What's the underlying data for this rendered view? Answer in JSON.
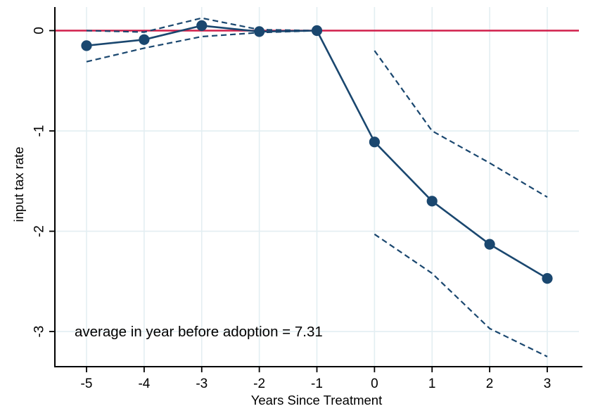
{
  "window": {
    "background": "#ffffff"
  },
  "chart_data": {
    "type": "line",
    "title": "",
    "xlabel": "Years Since Treatment",
    "ylabel": "input tax rate",
    "annotation": "average in year before adoption = 7.31",
    "grid": true,
    "legend": "none",
    "x_tick_labels": [
      "-5",
      "-4",
      "-3",
      "-2",
      "-1",
      "0",
      "1",
      "2",
      "3"
    ],
    "x_tick_values": [
      -5,
      -4,
      -3,
      -2,
      -1,
      0,
      1,
      2,
      3
    ],
    "y_tick_labels": [
      "0",
      "-1",
      "-2",
      "-3"
    ],
    "y_tick_values": [
      0,
      -1,
      -2,
      -3
    ],
    "xlim": [
      -5.55,
      3.55
    ],
    "ylim": [
      -3.35,
      0.235
    ],
    "zero_line": {
      "value": 0,
      "color": "#d01e4a"
    },
    "colors": {
      "series": "#1a476f",
      "zero_line": "#d01e4a",
      "grid": "#e3eef2",
      "axis": "#000000"
    },
    "series": [
      {
        "name": "point-estimate",
        "style": "solid-markers",
        "x": [
          -5,
          -4,
          -3,
          -2,
          -1,
          0,
          1,
          2,
          3
        ],
        "y": [
          -0.15,
          -0.09,
          0.05,
          -0.01,
          0,
          -1.11,
          -1.7,
          -2.13,
          -2.47
        ]
      },
      {
        "name": "ci-upper-pre",
        "style": "dashed",
        "x": [
          -5,
          -4,
          -3,
          -2,
          -1
        ],
        "y": [
          0,
          -0.015,
          0.125,
          0.01,
          0
        ]
      },
      {
        "name": "ci-lower-pre",
        "style": "dashed",
        "x": [
          -5,
          -4,
          -3,
          -2,
          -1
        ],
        "y": [
          -0.31,
          -0.175,
          -0.06,
          -0.02,
          0
        ]
      },
      {
        "name": "ci-upper-post",
        "style": "dashed",
        "x": [
          0,
          1,
          2,
          3
        ],
        "y": [
          -0.2,
          -1.0,
          -1.32,
          -1.66
        ]
      },
      {
        "name": "ci-lower-post",
        "style": "dashed",
        "x": [
          0,
          1,
          2,
          3
        ],
        "y": [
          -2.03,
          -2.42,
          -2.97,
          -3.25
        ]
      }
    ]
  }
}
